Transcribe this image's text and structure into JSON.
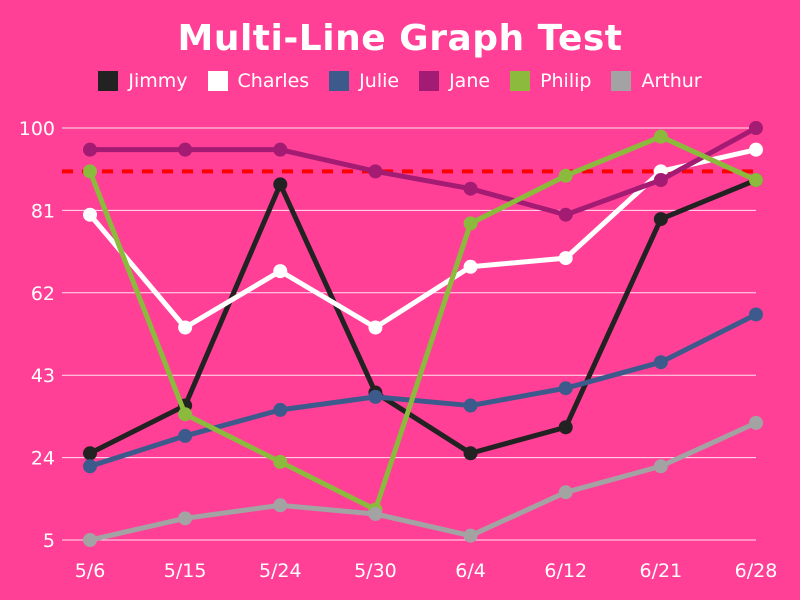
{
  "chart_data": {
    "type": "line",
    "title": "Multi-Line Graph Test",
    "categories": [
      "5/6",
      "5/15",
      "5/24",
      "5/30",
      "6/4",
      "6/12",
      "6/21",
      "6/28"
    ],
    "ylim": [
      5,
      100
    ],
    "yticks": [
      "100",
      "81",
      "62",
      "43",
      "24",
      "5"
    ],
    "grid": true,
    "legend_position": "top",
    "reference_line": {
      "value": 90,
      "color": "#ff0000",
      "style": "dashed"
    },
    "series": [
      {
        "name": "Jimmy",
        "color": "#222222",
        "values": [
          25,
          36,
          87,
          39,
          25,
          31,
          79,
          88
        ]
      },
      {
        "name": "Charles",
        "color": "#ffffff",
        "values": [
          80,
          54,
          67,
          54,
          68,
          70,
          90,
          95
        ]
      },
      {
        "name": "Julie",
        "color": "#3d5a8c",
        "values": [
          22,
          29,
          35,
          38,
          36,
          40,
          46,
          57
        ]
      },
      {
        "name": "Jane",
        "color": "#a31b72",
        "values": [
          95,
          95,
          95,
          90,
          86,
          80,
          88,
          100
        ]
      },
      {
        "name": "Philip",
        "color": "#8cba3c",
        "values": [
          90,
          34,
          23,
          12,
          78,
          89,
          98,
          88
        ]
      },
      {
        "name": "Arthur",
        "color": "#a3a3a3",
        "values": [
          5,
          10,
          13,
          11,
          6,
          16,
          22,
          32
        ]
      }
    ]
  }
}
